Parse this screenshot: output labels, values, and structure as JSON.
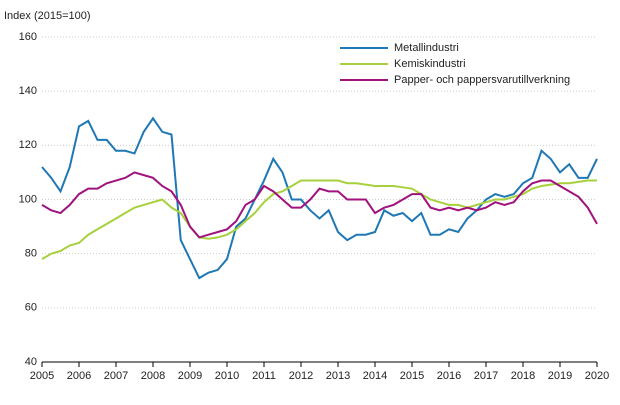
{
  "chart_data": {
    "type": "line",
    "y_label": "Index (2015=100)",
    "x": [
      2005,
      2005.25,
      2005.5,
      2005.75,
      2006,
      2006.25,
      2006.5,
      2006.75,
      2007,
      2007.25,
      2007.5,
      2007.75,
      2008,
      2008.25,
      2008.5,
      2008.75,
      2009,
      2009.25,
      2009.5,
      2009.75,
      2010,
      2010.25,
      2010.5,
      2010.75,
      2011,
      2011.25,
      2011.5,
      2011.75,
      2012,
      2012.25,
      2012.5,
      2012.75,
      2013,
      2013.25,
      2013.5,
      2013.75,
      2014,
      2014.25,
      2014.5,
      2014.75,
      2015,
      2015.25,
      2015.5,
      2015.75,
      2016,
      2016.25,
      2016.5,
      2016.75,
      2017,
      2017.25,
      2017.5,
      2017.75,
      2018,
      2018.25,
      2018.5,
      2018.75,
      2019,
      2019.25,
      2019.5,
      2019.75,
      2020
    ],
    "series": [
      {
        "name": "Metallindustri",
        "color": "#1f78b4",
        "values": [
          112,
          108,
          103,
          112,
          127,
          129,
          122,
          122,
          118,
          118,
          117,
          125,
          130,
          125,
          124,
          85,
          78,
          71,
          73,
          74,
          78,
          90,
          93,
          100,
          107,
          115,
          110,
          100,
          100,
          96,
          93,
          96,
          88,
          85,
          87,
          87,
          88,
          96,
          94,
          95,
          92,
          95,
          87,
          87,
          89,
          88,
          93,
          96,
          100,
          102,
          101,
          102,
          106,
          108,
          118,
          115,
          110,
          113,
          108,
          108,
          115
        ]
      },
      {
        "name": "Kemiskindustri",
        "color": "#a6d13c",
        "values": [
          78,
          80,
          81,
          83,
          84,
          87,
          89,
          91,
          93,
          95,
          97,
          98,
          99,
          100,
          97,
          95,
          90,
          86,
          85.5,
          86,
          87,
          89,
          92,
          95,
          99,
          102,
          103,
          105,
          107,
          107,
          107,
          107,
          107,
          106,
          106,
          105.5,
          105,
          105,
          105,
          104.5,
          104,
          102,
          100,
          99,
          98,
          98,
          97,
          98,
          99,
          100,
          100,
          101,
          102,
          104,
          105,
          105.5,
          106,
          106,
          106.5,
          107,
          107
        ]
      },
      {
        "name": "Papper- och pappersvarutillverkning",
        "color": "#a0127d",
        "values": [
          98,
          96,
          95,
          98,
          102,
          104,
          104,
          106,
          107,
          108,
          110,
          109,
          108,
          105,
          103,
          98,
          90,
          86,
          87,
          88,
          89,
          92,
          98,
          100,
          105,
          103,
          100,
          97,
          97,
          100,
          104,
          103,
          103,
          100,
          100,
          100,
          95,
          97,
          98,
          100,
          102,
          102,
          97,
          96,
          97,
          96,
          97,
          96,
          97,
          99,
          98,
          99,
          103,
          106,
          107,
          107,
          105,
          103,
          101,
          97,
          91
        ]
      }
    ],
    "xlim": [
      2005,
      2020
    ],
    "xticks": [
      2005,
      2006,
      2007,
      2008,
      2009,
      2010,
      2011,
      2012,
      2013,
      2014,
      2015,
      2016,
      2017,
      2018,
      2019,
      2020
    ],
    "ylim": [
      40,
      160
    ],
    "yticks": [
      40,
      60,
      80,
      100,
      120,
      140,
      160
    ],
    "grid": true,
    "legend": "upper right"
  }
}
